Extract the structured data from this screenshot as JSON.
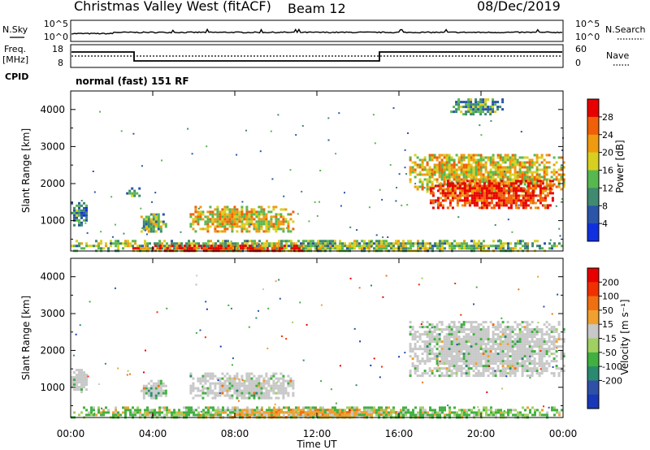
{
  "header": {
    "title": "Christmas Valley West (fitACF)",
    "beam": "Beam 12",
    "date": "08/Dec/2019"
  },
  "strip_noise": {
    "left_label": "N.Sky",
    "right_label": "N.Search",
    "left_ticks": [
      "10^5",
      "10^0"
    ],
    "right_ticks": [
      "10^5",
      "10^0"
    ]
  },
  "strip_freq": {
    "left_label_1": "Freq.",
    "left_label_2": "[MHz]",
    "right_label": "Nave",
    "left_ticks": [
      "18",
      "8"
    ],
    "right_ticks": [
      "60",
      "0"
    ]
  },
  "cpid": {
    "label": "CPID",
    "value": "normal (fast) 151 RF"
  },
  "chart_data": [
    {
      "type": "heatmap",
      "name": "Power",
      "xlabel": "",
      "ylabel": "Slant Range [km]",
      "x_ticks": [
        "00:00",
        "04:00",
        "08:00",
        "12:00",
        "16:00",
        "20:00",
        "00:00"
      ],
      "y_ticks": [
        "1000",
        "2000",
        "3000",
        "4000"
      ],
      "ylim": [
        180,
        4500
      ],
      "colorbar": {
        "label": "Power [dB]",
        "ticks": [
          "4",
          "8",
          "12",
          "16",
          "20",
          "24",
          "28"
        ],
        "colors": [
          "#1030e0",
          "#2a55a8",
          "#3f8a70",
          "#58b850",
          "#d8d020",
          "#f09a10",
          "#f06008",
          "#e80000"
        ]
      },
      "regions": [
        {
          "t0": 0.0,
          "t1": 0.8,
          "r0": 900,
          "r1": 1500,
          "level": 0.3
        },
        {
          "t0": 2.7,
          "t1": 3.3,
          "r0": 1700,
          "r1": 1900,
          "level": 0.3
        },
        {
          "t0": 3.4,
          "t1": 4.6,
          "r0": 700,
          "r1": 1200,
          "level": 0.45
        },
        {
          "t0": 5.8,
          "t1": 10.8,
          "r0": 700,
          "r1": 1400,
          "level": 0.6
        },
        {
          "t0": 0.0,
          "t1": 24.0,
          "r0": 200,
          "r1": 480,
          "level": 0.45
        },
        {
          "t0": 3.0,
          "t1": 11.2,
          "r0": 200,
          "r1": 350,
          "level": 0.92
        },
        {
          "t0": 16.5,
          "t1": 24.0,
          "r0": 1800,
          "r1": 2800,
          "level": 0.6
        },
        {
          "t0": 17.5,
          "t1": 23.5,
          "r0": 1350,
          "r1": 2100,
          "level": 0.9
        },
        {
          "t0": 18.5,
          "t1": 21.0,
          "r0": 3900,
          "r1": 4300,
          "level": 0.35
        }
      ]
    },
    {
      "type": "heatmap",
      "name": "Velocity",
      "xlabel": "Time UT",
      "ylabel": "Slant Range [km]",
      "x_ticks": [
        "00:00",
        "04:00",
        "08:00",
        "12:00",
        "16:00",
        "20:00",
        "00:00"
      ],
      "y_ticks": [
        "1000",
        "2000",
        "3000",
        "4000"
      ],
      "ylim": [
        180,
        4500
      ],
      "colorbar": {
        "label": "Velocity [m s⁻¹]",
        "ticks": [
          "200",
          "100",
          "50",
          "15",
          "-15",
          "-50",
          "-100",
          "-200"
        ],
        "colors": [
          "#1838b8",
          "#3050a8",
          "#2a8a70",
          "#40b040",
          "#a0d060",
          "#c8c8c8",
          "#f0a030",
          "#f07010",
          "#f03000",
          "#e80000"
        ]
      },
      "regions": [
        {
          "t0": 0.0,
          "t1": 0.8,
          "r0": 900,
          "r1": 1500,
          "level": "grey"
        },
        {
          "t0": 3.4,
          "t1": 4.6,
          "r0": 700,
          "r1": 1200,
          "level": "grey"
        },
        {
          "t0": 5.8,
          "t1": 10.8,
          "r0": 700,
          "r1": 1400,
          "level": "grey"
        },
        {
          "t0": 0.0,
          "t1": 24.0,
          "r0": 200,
          "r1": 480,
          "level": "green"
        },
        {
          "t0": 7.0,
          "t1": 16.0,
          "r0": 220,
          "r1": 420,
          "level": "orange"
        },
        {
          "t0": 16.5,
          "t1": 24.0,
          "r0": 1300,
          "r1": 2800,
          "level": "grey"
        }
      ]
    }
  ]
}
